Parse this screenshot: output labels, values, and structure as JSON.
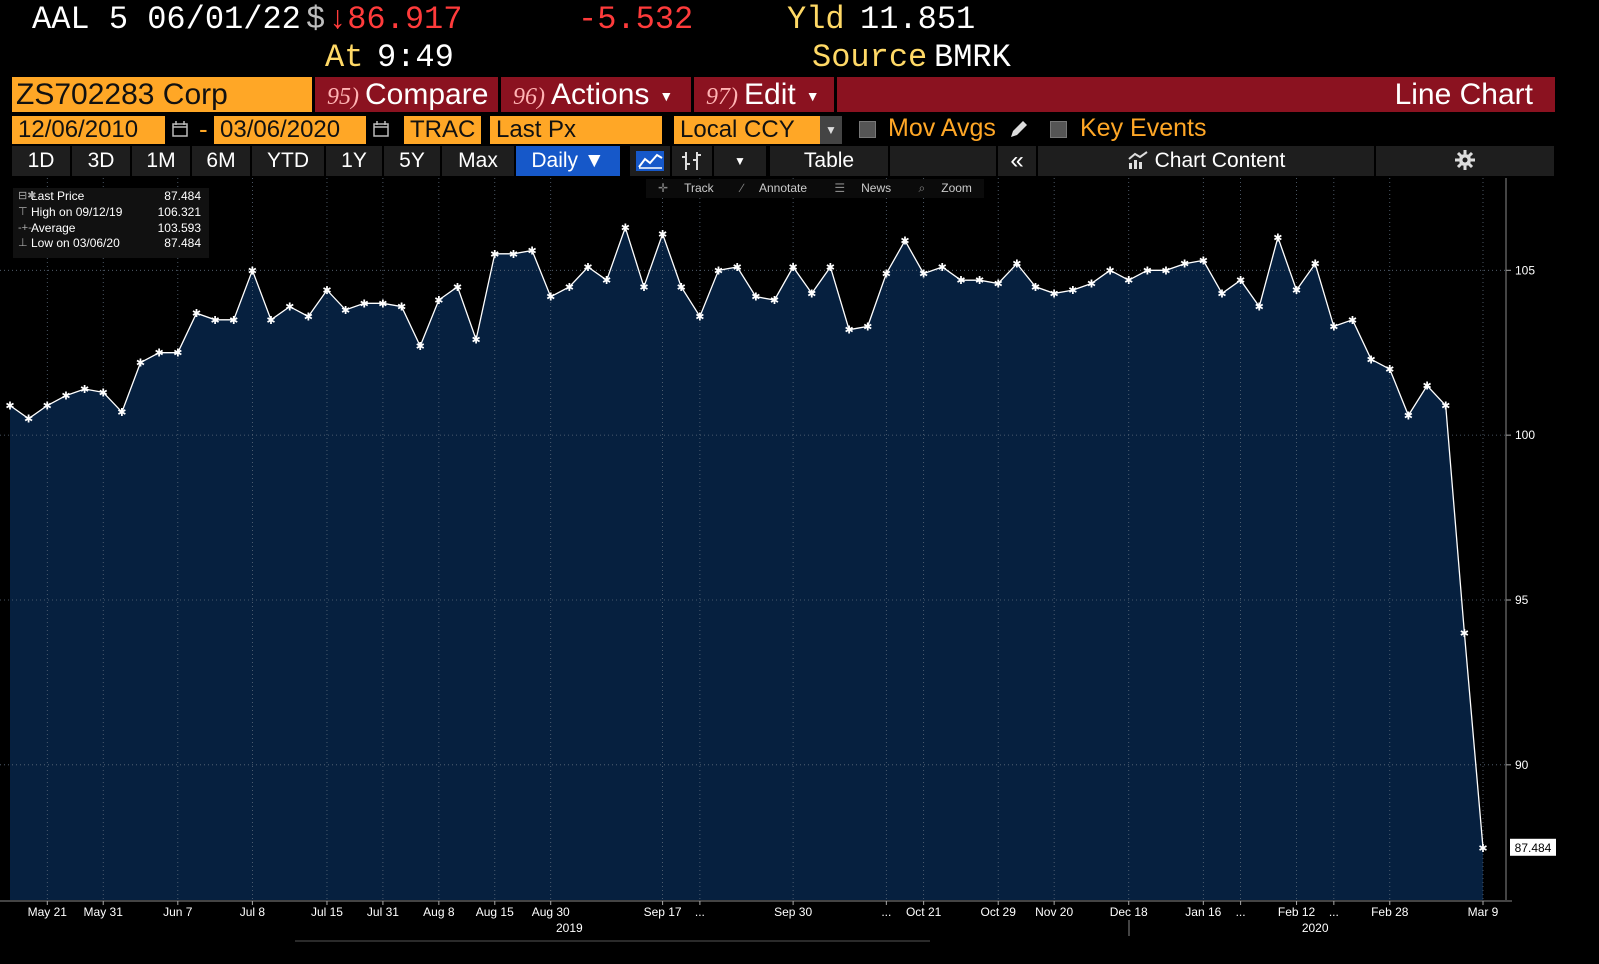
{
  "quote": {
    "security": "AAL 5 06/01/22",
    "currency_symbol": "$",
    "price": "↓86.917",
    "change": "-5.532",
    "yield_label": "Yld",
    "yield": "11.851",
    "at_label": "At",
    "time": "9:49",
    "source_label": "Source",
    "source": "BMRK"
  },
  "function_bar": {
    "ticker": "ZS702283 Corp",
    "compare": {
      "num": "95)",
      "label": "Compare"
    },
    "actions": {
      "num": "96)",
      "label": "Actions"
    },
    "edit": {
      "num": "97)",
      "label": "Edit"
    },
    "title": "Line Chart"
  },
  "settings_row": {
    "start_date": "12/06/2010",
    "separator": "-",
    "end_date": "03/06/2020",
    "source": "TRAC",
    "field": "Last Px",
    "currency": "Local CCY",
    "mov_avgs": "Mov Avgs",
    "key_events": "Key Events"
  },
  "range_buttons": [
    "1D",
    "3D",
    "1M",
    "6M",
    "YTD",
    "1Y",
    "5Y",
    "Max"
  ],
  "frequency": "Daily ▼",
  "table_label": "Table",
  "chart_content_label": "Chart Content",
  "chart_tools": [
    "Track",
    "Annotate",
    "News",
    "Zoom"
  ],
  "legend": [
    {
      "label": "Last Price",
      "value": "87.484"
    },
    {
      "label": "High on 09/12/19",
      "value": "106.321"
    },
    {
      "label": "Average",
      "value": "103.593"
    },
    {
      "label": "Low on 03/06/20",
      "value": "87.484"
    }
  ],
  "colors": {
    "fill": "#06203f",
    "line": "#ffffff",
    "accent": "#ffa726",
    "bar": "#8b1220",
    "down": "#ff3b3b"
  },
  "chart_data": {
    "type": "area",
    "title": "",
    "xlabel": "",
    "ylabel": "",
    "ylim": [
      85.9,
      107.8
    ],
    "yticks": [
      90,
      95,
      100,
      105
    ],
    "last_label": "87.484",
    "x_tick_labels": [
      "May 21",
      "May 31",
      "Jun 7",
      "Jul 8",
      "Jul 15",
      "Jul 31",
      "Aug 8",
      "Aug 15",
      "Aug 30",
      "Sep 17",
      "...",
      "Sep 30",
      "...",
      "Oct 21",
      "Oct 29",
      "Nov 20",
      "Dec 18",
      "Jan 16",
      "...",
      "Feb 12",
      "...",
      "Feb 28",
      "Mar 9"
    ],
    "x_tick_indices": [
      2,
      5,
      9,
      13,
      17,
      20,
      23,
      26,
      29,
      35,
      37,
      42,
      47,
      49,
      53,
      56,
      60,
      64,
      66,
      69,
      71,
      74,
      79
    ],
    "year_labels": [
      {
        "label": "2019",
        "index": 30
      },
      {
        "label": "2020",
        "index": 70
      }
    ],
    "values": [
      100.9,
      100.5,
      100.9,
      101.2,
      101.4,
      101.3,
      100.7,
      102.2,
      102.5,
      102.5,
      103.7,
      103.5,
      103.5,
      105.0,
      103.5,
      103.9,
      103.6,
      104.4,
      103.8,
      104.0,
      104.0,
      103.9,
      102.7,
      104.1,
      104.5,
      102.9,
      105.5,
      105.5,
      105.6,
      104.2,
      104.5,
      105.1,
      104.7,
      106.3,
      104.5,
      106.1,
      104.5,
      103.6,
      105.0,
      105.1,
      104.2,
      104.1,
      105.1,
      104.3,
      105.1,
      103.2,
      103.3,
      104.9,
      105.9,
      104.9,
      105.1,
      104.7,
      104.7,
      104.6,
      105.2,
      104.5,
      104.3,
      104.4,
      104.6,
      105.0,
      104.7,
      105.0,
      105.0,
      105.2,
      105.3,
      104.3,
      104.7,
      103.9,
      106.0,
      104.4,
      105.2,
      103.3,
      103.5,
      102.3,
      102.0,
      100.6,
      101.5,
      100.9,
      94.0,
      87.484
    ]
  }
}
